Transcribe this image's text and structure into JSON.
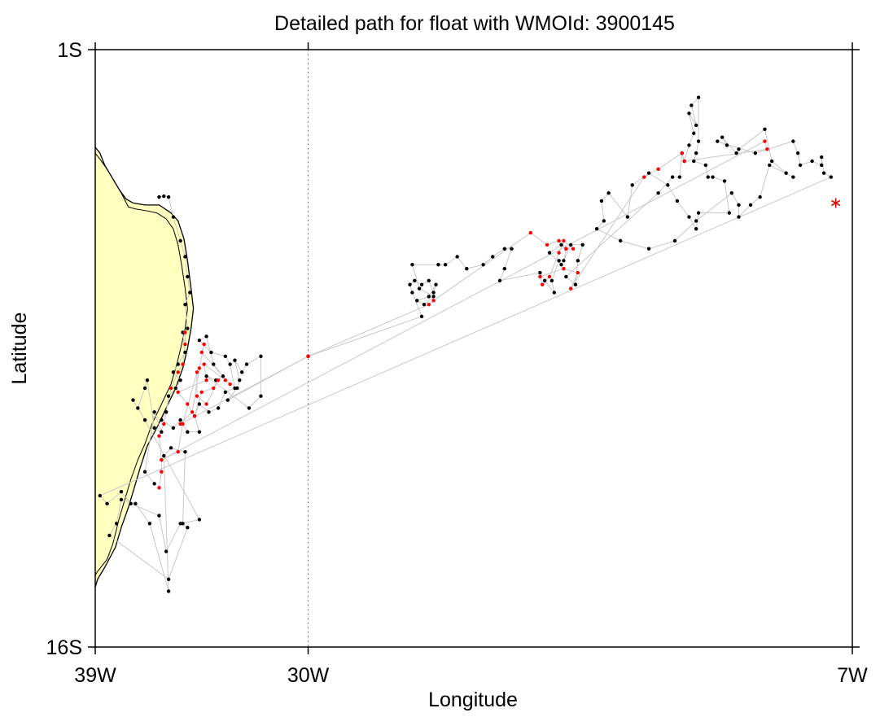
{
  "chart_data": {
    "type": "scatter",
    "title": "Detailed path for float with WMOId: 3900145",
    "xlabel": "Longitude",
    "ylabel": "Latitude",
    "xlim": [
      -39,
      -7
    ],
    "ylim": [
      -16,
      -1
    ],
    "x_ticks": [
      {
        "value": -39,
        "label": "39W"
      },
      {
        "value": -30,
        "label": "30W"
      },
      {
        "value": -7,
        "label": "7W"
      }
    ],
    "y_ticks": [
      {
        "value": -1,
        "label": "1S"
      },
      {
        "value": -16,
        "label": "16S"
      }
    ],
    "reference_line": {
      "lon": -30,
      "style": "dotted"
    },
    "colors": {
      "land": "#ffffc0",
      "coast": "#000000",
      "track": "#c8c8c8",
      "profile": "#000000",
      "highlight": "#ff0000",
      "last_position": "#e00000"
    },
    "coastline": {
      "outer": [
        [
          -39,
          -3.45
        ],
        [
          -38.8,
          -3.6
        ],
        [
          -38.6,
          -3.9
        ],
        [
          -38.3,
          -4.2
        ],
        [
          -38,
          -4.5
        ],
        [
          -37.7,
          -4.75
        ],
        [
          -37.4,
          -4.85
        ],
        [
          -36.9,
          -4.9
        ],
        [
          -36.3,
          -4.9
        ],
        [
          -35.8,
          -5.1
        ],
        [
          -35.5,
          -5.3
        ],
        [
          -35.25,
          -5.75
        ],
        [
          -35.1,
          -6.3
        ],
        [
          -34.95,
          -7.0
        ],
        [
          -34.85,
          -7.5
        ],
        [
          -34.95,
          -8.0
        ],
        [
          -35.1,
          -8.5
        ],
        [
          -35.3,
          -9.0
        ],
        [
          -35.6,
          -9.5
        ],
        [
          -36.0,
          -10.0
        ],
        [
          -36.4,
          -10.5
        ],
        [
          -36.8,
          -10.95
        ],
        [
          -37.1,
          -11.5
        ],
        [
          -37.35,
          -12.0
        ],
        [
          -37.6,
          -12.5
        ],
        [
          -37.9,
          -13.0
        ],
        [
          -38.15,
          -13.5
        ],
        [
          -38.6,
          -14.0
        ],
        [
          -38.9,
          -14.3
        ],
        [
          -39,
          -14.5
        ]
      ],
      "inner": [
        [
          -39,
          -3.6
        ],
        [
          -38.8,
          -3.75
        ],
        [
          -38.5,
          -4.0
        ],
        [
          -38.2,
          -4.3
        ],
        [
          -37.9,
          -4.6
        ],
        [
          -37.6,
          -4.95
        ],
        [
          -37.3,
          -5.0
        ],
        [
          -36.8,
          -5.05
        ],
        [
          -36.4,
          -5.1
        ],
        [
          -36.0,
          -5.25
        ],
        [
          -35.7,
          -5.5
        ],
        [
          -35.5,
          -5.9
        ],
        [
          -35.35,
          -6.4
        ],
        [
          -35.2,
          -7.0
        ],
        [
          -35.1,
          -7.5
        ],
        [
          -35.2,
          -8.0
        ],
        [
          -35.35,
          -8.4
        ],
        [
          -35.55,
          -8.9
        ],
        [
          -35.8,
          -9.4
        ],
        [
          -36.2,
          -9.9
        ],
        [
          -36.6,
          -10.4
        ],
        [
          -36.9,
          -10.9
        ],
        [
          -37.2,
          -11.3
        ],
        [
          -37.5,
          -11.8
        ],
        [
          -37.75,
          -12.3
        ],
        [
          -38.0,
          -12.8
        ],
        [
          -38.25,
          -13.4
        ],
        [
          -38.5,
          -13.8
        ],
        [
          -38.9,
          -14.1
        ],
        [
          -39,
          -14.2
        ]
      ]
    },
    "series": [
      {
        "markers": "profile",
        "points": [
          [
            -36.3,
            -4.7
          ],
          [
            -36.1,
            -4.68
          ],
          [
            -35.9,
            -4.7
          ],
          [
            -35.7,
            -5.2
          ],
          [
            -35.4,
            -5.8
          ],
          [
            -35.2,
            -6.2
          ],
          [
            -35.1,
            -6.7
          ],
          [
            -35,
            -7.1
          ],
          [
            -35.2,
            -7.4
          ],
          [
            -35.1,
            -8
          ],
          [
            -35.3,
            -8.1
          ],
          [
            -35.2,
            -8.6
          ],
          [
            -35.5,
            -8.9
          ],
          [
            -35.7,
            -9.1
          ],
          [
            -35.4,
            -9.3
          ],
          [
            -35.6,
            -9.5
          ],
          [
            -35.9,
            -9.7
          ],
          [
            -36,
            -10.1
          ],
          [
            -36.2,
            -10.3
          ],
          [
            -35.7,
            -10.5
          ],
          [
            -35.4,
            -10.3
          ],
          [
            -35.1,
            -10.6
          ],
          [
            -34.6,
            -10.6
          ],
          [
            -34.8,
            -10.2
          ],
          [
            -34.6,
            -9.9
          ],
          [
            -34.2,
            -10.1
          ],
          [
            -33.8,
            -10
          ],
          [
            -33.5,
            -9.6
          ],
          [
            -33.1,
            -9.5
          ],
          [
            -33.3,
            -8.9
          ],
          [
            -33.5,
            -8.7
          ],
          [
            -34.1,
            -8.6
          ],
          [
            -34.6,
            -8.3
          ],
          [
            -34.3,
            -8.2
          ],
          [
            -34,
            -8.9
          ],
          [
            -33.6,
            -9.2
          ],
          [
            -33.9,
            -9.3
          ],
          [
            -34.3,
            -9.2
          ],
          [
            -32.5,
            -10
          ],
          [
            -32,
            -9.7
          ],
          [
            -32,
            -8.7
          ],
          [
            -32.6,
            -8.9
          ],
          [
            -32.8,
            -9.1
          ],
          [
            -33.1,
            -8.8
          ],
          [
            -32.9,
            -9.3
          ],
          [
            -33,
            -9.5
          ],
          [
            -33.4,
            -9.8
          ],
          [
            -30,
            -8.7
          ],
          [
            -25.2,
            -7.7
          ],
          [
            -25.6,
            -7.1
          ],
          [
            -25.7,
            -6.9
          ],
          [
            -25.5,
            -6.8
          ],
          [
            -25.2,
            -6.9
          ],
          [
            -24.9,
            -6.8
          ],
          [
            -24.7,
            -7.1
          ],
          [
            -24.6,
            -6.9
          ],
          [
            -24.9,
            -7.2
          ],
          [
            -25.4,
            -7.3
          ],
          [
            -25.1,
            -7.4
          ],
          [
            -24.7,
            -7.2
          ],
          [
            -25.3,
            -7
          ],
          [
            -25.6,
            -6.4
          ],
          [
            -24.5,
            -6.4
          ],
          [
            -24.2,
            -6.4
          ],
          [
            -23.7,
            -6.2
          ],
          [
            -23.3,
            -6.5
          ],
          [
            -22.6,
            -6.4
          ],
          [
            -22.2,
            -6.2
          ],
          [
            -21.7,
            -6
          ],
          [
            -21.4,
            -6
          ],
          [
            -21.7,
            -6.5
          ],
          [
            -21.9,
            -6.8
          ],
          [
            -20.2,
            -6.6
          ],
          [
            -20,
            -6.8
          ],
          [
            -19.6,
            -7.1
          ],
          [
            -19.7,
            -6.8
          ],
          [
            -19.4,
            -6.3
          ],
          [
            -19.3,
            -6.4
          ],
          [
            -19.8,
            -6.1
          ],
          [
            -19.3,
            -5.9
          ],
          [
            -19.1,
            -6
          ],
          [
            -19.2,
            -6.3
          ],
          [
            -18.9,
            -5.9
          ],
          [
            -18.4,
            -5.9
          ],
          [
            -18.6,
            -6.3
          ],
          [
            -18.7,
            -6.9
          ],
          [
            -19.1,
            -6.7
          ],
          [
            -15.2,
            -4.6
          ],
          [
            -14.6,
            -4.2
          ],
          [
            -14.3,
            -4.2
          ],
          [
            -14.2,
            -3.6
          ],
          [
            -14.1,
            -3.8
          ],
          [
            -13.9,
            -3.4
          ],
          [
            -13.7,
            -3.1
          ],
          [
            -13.9,
            -2.6
          ],
          [
            -13.6,
            -2.9
          ],
          [
            -13.8,
            -2.4
          ],
          [
            -13.5,
            -2.2
          ],
          [
            -13.5,
            -3.3
          ],
          [
            -13.6,
            -3.6
          ],
          [
            -13.7,
            -3.8
          ],
          [
            -13.2,
            -3.9
          ],
          [
            -13.1,
            -4.2
          ],
          [
            -12.9,
            -4.2
          ],
          [
            -12.4,
            -4.3
          ],
          [
            -12.2,
            -5.1
          ],
          [
            -13.5,
            -5.1
          ],
          [
            -13.6,
            -5.5
          ],
          [
            -13.9,
            -5.2
          ],
          [
            -14.4,
            -4.8
          ],
          [
            -14.8,
            -4.4
          ],
          [
            -15.6,
            -4.1
          ],
          [
            -16.3,
            -4.4
          ],
          [
            -16.5,
            -5.2
          ],
          [
            -17.3,
            -4.6
          ],
          [
            -17.6,
            -4.8
          ],
          [
            -17.5,
            -5.3
          ],
          [
            -17.8,
            -5.5
          ],
          [
            -16.8,
            -5.8
          ],
          [
            -15.6,
            -6
          ],
          [
            -14.5,
            -5.8
          ],
          [
            -13.6,
            -5.3
          ],
          [
            -12.1,
            -4.6
          ],
          [
            -11.8,
            -4.9
          ],
          [
            -11.8,
            -5.2
          ],
          [
            -11.3,
            -4.9
          ],
          [
            -10.9,
            -4.7
          ],
          [
            -10.5,
            -3.9
          ],
          [
            -9.5,
            -4.2
          ],
          [
            -9.8,
            -4.1
          ],
          [
            -10.4,
            -3.8
          ],
          [
            -10.7,
            -3.0
          ],
          [
            -11.8,
            -3.5
          ],
          [
            -11.9,
            -3.6
          ],
          [
            -12.5,
            -3.2
          ],
          [
            -12.3,
            -3.4
          ],
          [
            -12.7,
            -3.3
          ],
          [
            -11.1,
            -3.6
          ],
          [
            -9.5,
            -3.3
          ],
          [
            -9.3,
            -3.6
          ],
          [
            -9.2,
            -3.9
          ],
          [
            -8.7,
            -3.8
          ],
          [
            -8.3,
            -3.9
          ],
          [
            -8.3,
            -3.7
          ],
          [
            -8.2,
            -4.1
          ],
          [
            -7.9,
            -4.2
          ],
          [
            -38.8,
            -12.2
          ],
          [
            -38.5,
            -12.4
          ],
          [
            -37.9,
            -12.1
          ],
          [
            -37.5,
            -12.4
          ],
          [
            -36.3,
            -12.7
          ],
          [
            -36,
            -13.6
          ],
          [
            -35.4,
            -12.9
          ],
          [
            -35.1,
            -13
          ],
          [
            -35.9,
            -14.3
          ],
          [
            -38.4,
            -13.2
          ],
          [
            -38.1,
            -12.9
          ],
          [
            -37.9,
            -12.3
          ],
          [
            -37.3,
            -12.4
          ],
          [
            -36.7,
            -12.9
          ],
          [
            -35.9,
            -14.6
          ],
          [
            -36.1,
            -11.2
          ],
          [
            -35.8,
            -11.0
          ],
          [
            -35.2,
            -11.1
          ],
          [
            -35.3,
            -12.9
          ],
          [
            -34.6,
            -12.8
          ],
          [
            -36.9,
            -10.3
          ],
          [
            -37.4,
            -9.8
          ],
          [
            -37.2,
            -10.0
          ],
          [
            -36.9,
            -9.5
          ],
          [
            -36.8,
            -9.3
          ],
          [
            -36.5,
            -10.5
          ],
          [
            -36.2,
            -10.6
          ],
          [
            -36.5,
            -10.1
          ],
          [
            -36.9,
            -11.6
          ],
          [
            -36.5,
            -11.9
          ]
        ]
      },
      {
        "markers": "highlight",
        "points": [
          [
            -35.2,
            -8.1
          ],
          [
            -35.2,
            -8.4
          ],
          [
            -35.3,
            -8.9
          ],
          [
            -35.5,
            -9.1
          ],
          [
            -35.8,
            -9.5
          ],
          [
            -36.1,
            -10.4
          ],
          [
            -36.3,
            -10.7
          ],
          [
            -36.2,
            -11.3
          ],
          [
            -35.5,
            -11.1
          ],
          [
            -35.3,
            -10.4
          ],
          [
            -34.7,
            -9.1
          ],
          [
            -34.7,
            -9.7
          ],
          [
            -34.3,
            -9.9
          ],
          [
            -33.8,
            -9.3
          ],
          [
            -34,
            -9.5
          ],
          [
            -34.5,
            -9.6
          ],
          [
            -34.8,
            -10.2
          ],
          [
            -35.1,
            -9.9
          ],
          [
            -35.5,
            -9.6
          ],
          [
            -34.3,
            -9.3
          ],
          [
            -34.4,
            -8.9
          ],
          [
            -33.5,
            -9.3
          ],
          [
            -33.3,
            -9.4
          ],
          [
            -34.5,
            -8.6
          ],
          [
            -34.4,
            -8.4
          ],
          [
            -34.6,
            -9
          ],
          [
            -34.9,
            -10.1
          ],
          [
            -35.4,
            -10.4
          ],
          [
            -30,
            -8.7
          ],
          [
            -24.9,
            -7.4
          ],
          [
            -24.7,
            -7.3
          ],
          [
            -20.6,
            -5.6
          ],
          [
            -19.9,
            -5.9
          ],
          [
            -19.4,
            -5.8
          ],
          [
            -19.1,
            -6
          ],
          [
            -18.8,
            -6
          ],
          [
            -19.2,
            -5.8
          ],
          [
            -19.4,
            -6.1
          ],
          [
            -19.8,
            -6.7
          ],
          [
            -20.1,
            -6.9
          ],
          [
            -20.2,
            -6.7
          ],
          [
            -19.2,
            -6.5
          ],
          [
            -18.6,
            -6.6
          ],
          [
            -18.9,
            -7.0
          ],
          [
            -15.8,
            -4.2
          ],
          [
            -15.2,
            -4.0
          ],
          [
            -14.2,
            -3.6
          ],
          [
            -14.1,
            -3.8
          ],
          [
            -10.6,
            -3.5
          ],
          [
            -10.7,
            -3.3
          ],
          [
            -36.2,
            -11.3
          ],
          [
            -36.2,
            -11.6
          ],
          [
            -36.3,
            -12.0
          ]
        ]
      }
    ],
    "last_position": [
      -7.7,
      -4.85
    ]
  }
}
